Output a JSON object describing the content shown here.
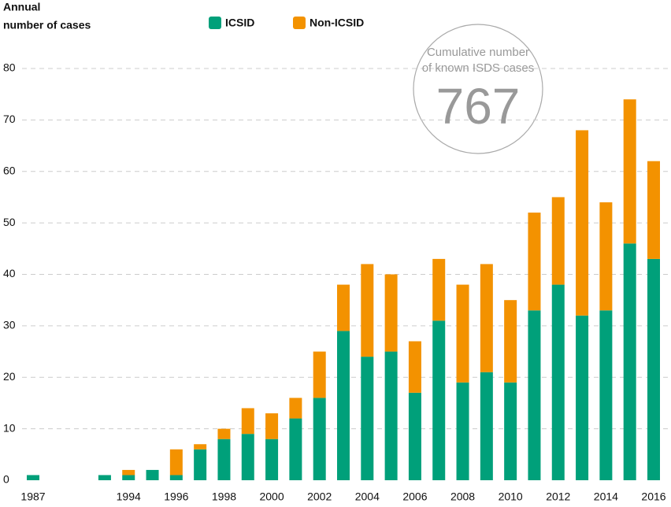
{
  "chart_data": {
    "type": "bar",
    "stacked": true,
    "y_label": [
      "Annual",
      "number of cases"
    ],
    "categories": [
      "1987",
      null,
      null,
      null,
      "1994",
      null,
      "1996",
      null,
      "1998",
      null,
      "2000",
      null,
      "2002",
      null,
      "2004",
      null,
      "2006",
      null,
      "2008",
      null,
      "2010",
      null,
      "2012",
      null,
      "2014",
      null,
      "2016"
    ],
    "series": [
      {
        "name": "ICSID",
        "color": "#00a07a",
        "values": [
          1,
          null,
          null,
          1,
          1,
          2,
          1,
          6,
          8,
          9,
          8,
          12,
          16,
          29,
          24,
          25,
          17,
          31,
          19,
          21,
          19,
          33,
          38,
          32,
          33,
          46,
          43
        ]
      },
      {
        "name": "Non-ICSID",
        "color": "#f39200",
        "values": [
          0,
          null,
          null,
          0,
          1,
          0,
          5,
          1,
          2,
          5,
          5,
          4,
          9,
          9,
          18,
          15,
          10,
          12,
          19,
          21,
          16,
          19,
          17,
          36,
          21,
          28,
          19
        ]
      }
    ],
    "ylim": [
      0,
      80
    ],
    "yticks": [
      0,
      10,
      20,
      30,
      40,
      50,
      60,
      70,
      80
    ],
    "grid": true,
    "annotation": {
      "lines": [
        "Cumulative number",
        "of known ISDS cases"
      ],
      "value": "767"
    }
  }
}
